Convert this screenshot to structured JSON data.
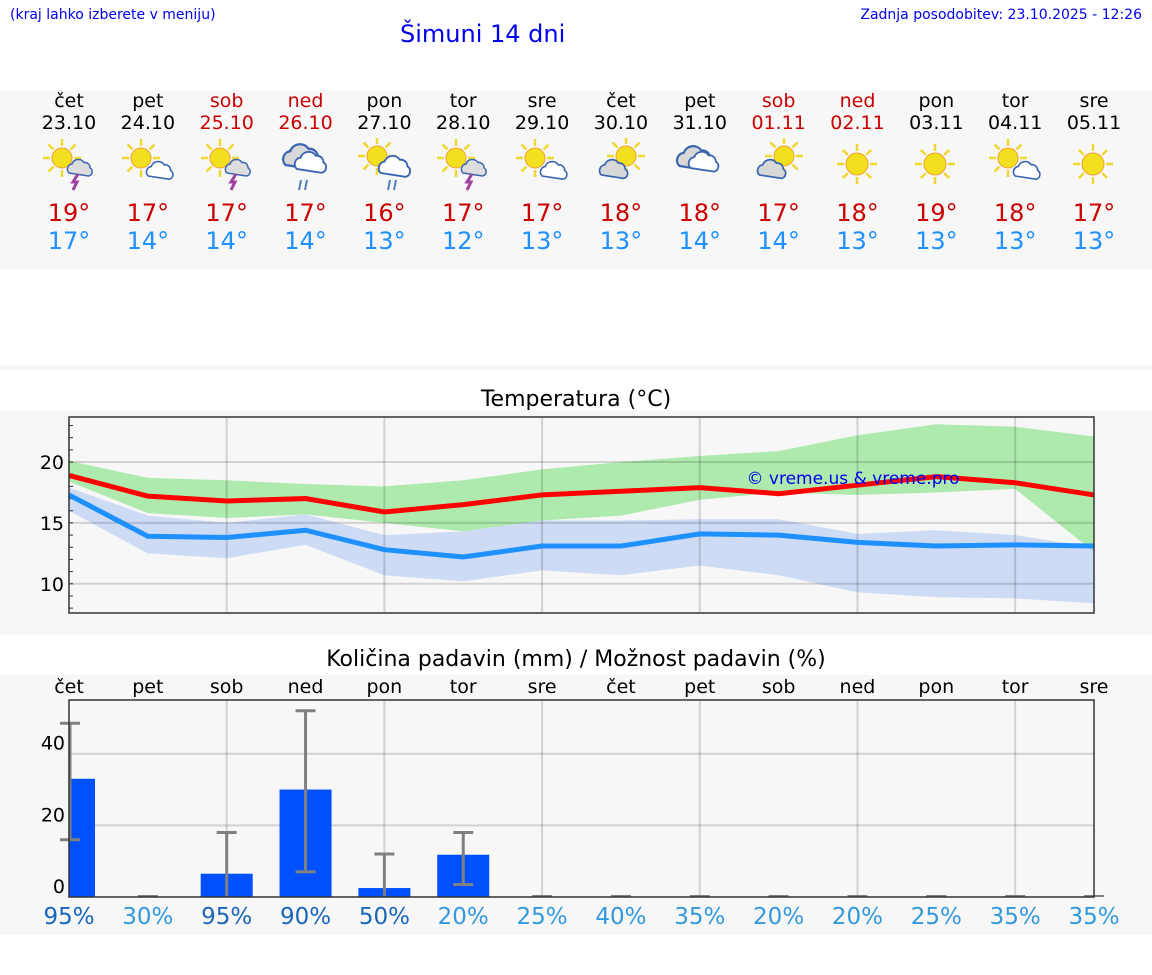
{
  "header": {
    "hint": "(kraj lahko izberete v meniju)",
    "title": "Šimuni 14 dni",
    "updated": "Zadnja posodobitev: 23.10.2025 - 12:26"
  },
  "days": [
    {
      "name": "čet",
      "date": "23.10",
      "weekend": false,
      "icon": "sun-storm",
      "max": "19°",
      "min": "17°"
    },
    {
      "name": "pet",
      "date": "24.10",
      "weekend": false,
      "icon": "sun-cloud",
      "max": "17°",
      "min": "14°"
    },
    {
      "name": "sob",
      "date": "25.10",
      "weekend": true,
      "icon": "sun-storm",
      "max": "17°",
      "min": "14°"
    },
    {
      "name": "ned",
      "date": "26.10",
      "weekend": true,
      "icon": "cloud-rain",
      "max": "17°",
      "min": "14°"
    },
    {
      "name": "pon",
      "date": "27.10",
      "weekend": false,
      "icon": "sun-cloud-rain",
      "max": "16°",
      "min": "13°"
    },
    {
      "name": "tor",
      "date": "28.10",
      "weekend": false,
      "icon": "sun-storm",
      "max": "17°",
      "min": "12°"
    },
    {
      "name": "sre",
      "date": "29.10",
      "weekend": false,
      "icon": "sun-cloud",
      "max": "17°",
      "min": "13°"
    },
    {
      "name": "čet",
      "date": "30.10",
      "weekend": false,
      "icon": "cloud-sun",
      "max": "18°",
      "min": "13°"
    },
    {
      "name": "pet",
      "date": "31.10",
      "weekend": false,
      "icon": "cloudy",
      "max": "18°",
      "min": "14°"
    },
    {
      "name": "sob",
      "date": "01.11",
      "weekend": true,
      "icon": "cloud-sun",
      "max": "17°",
      "min": "14°"
    },
    {
      "name": "ned",
      "date": "02.11",
      "weekend": true,
      "icon": "sun",
      "max": "18°",
      "min": "13°"
    },
    {
      "name": "pon",
      "date": "03.11",
      "weekend": false,
      "icon": "sun",
      "max": "19°",
      "min": "13°"
    },
    {
      "name": "tor",
      "date": "04.11",
      "weekend": false,
      "icon": "sun-cloud",
      "max": "18°",
      "min": "13°"
    },
    {
      "name": "sre",
      "date": "05.11",
      "weekend": false,
      "icon": "sun",
      "max": "17°",
      "min": "13°"
    }
  ],
  "colors": {
    "max": "#ff0000",
    "min": "#1e90ff",
    "maxBand": "#aeeaae",
    "minBand": "#b0c8f4",
    "bar": "#0050ff",
    "err": "#808080",
    "pctHigh": "#1a66bb",
    "pctLow": "#3399dd"
  },
  "chart_data": [
    {
      "type": "line",
      "title": "Temperatura (°C)",
      "watermark": "© vreme.us & vreme.pro",
      "ylim": [
        7.6,
        23.7
      ],
      "yticks": [
        10,
        15,
        20
      ],
      "grid": true,
      "x": [
        "23.10",
        "24.10",
        "25.10",
        "26.10",
        "27.10",
        "28.10",
        "29.10",
        "30.10",
        "31.10",
        "01.11",
        "02.11",
        "03.11",
        "04.11",
        "05.11"
      ],
      "series": [
        {
          "name": "max",
          "values": [
            18.9,
            17.2,
            16.8,
            17.0,
            15.9,
            16.5,
            17.3,
            17.6,
            17.9,
            17.4,
            18.1,
            18.8,
            18.3,
            17.3
          ]
        },
        {
          "name": "min",
          "values": [
            17.3,
            13.9,
            13.8,
            14.4,
            12.8,
            12.2,
            13.1,
            13.1,
            14.1,
            14.0,
            13.4,
            13.1,
            13.2,
            13.1
          ]
        }
      ],
      "bands": [
        {
          "name": "max-range",
          "upper": [
            20.1,
            18.7,
            18.5,
            18.2,
            18.0,
            18.5,
            19.4,
            20.0,
            20.5,
            20.9,
            22.2,
            23.1,
            22.9,
            22.1
          ],
          "lower": [
            18.4,
            15.8,
            15.4,
            15.7,
            15.0,
            14.3,
            15.2,
            15.6,
            16.9,
            17.5,
            17.3,
            17.5,
            17.8,
            12.6
          ]
        },
        {
          "name": "min-range",
          "upper": [
            17.9,
            15.6,
            15.0,
            15.7,
            14.0,
            14.3,
            15.2,
            15.2,
            15.3,
            15.3,
            14.1,
            14.4,
            14.0,
            13.0
          ],
          "lower": [
            16.0,
            12.5,
            12.1,
            13.2,
            10.7,
            10.2,
            11.1,
            10.7,
            11.5,
            10.7,
            9.3,
            8.9,
            8.8,
            8.4
          ]
        }
      ]
    },
    {
      "type": "bar",
      "title": "Količina padavin (mm) / Možnost padavin (%)",
      "ylim": [
        0,
        55
      ],
      "yticks": [
        0,
        20,
        40
      ],
      "grid": true,
      "categories": [
        "čet",
        "pet",
        "sob",
        "ned",
        "pon",
        "tor",
        "sre",
        "čet",
        "pet",
        "sob",
        "ned",
        "pon",
        "tor",
        "sre"
      ],
      "values": [
        33,
        0,
        6.5,
        30,
        2.5,
        11.8,
        0,
        0,
        0,
        0,
        0,
        0,
        0,
        0
      ],
      "err_low": [
        16,
        0,
        0,
        7,
        0,
        3.5,
        0,
        0,
        0,
        0,
        0,
        0,
        0,
        0
      ],
      "err_high": [
        48.5,
        0,
        18,
        52,
        12,
        18,
        0,
        0,
        0,
        0,
        0,
        0,
        0,
        0
      ],
      "probability": [
        "95%",
        "30%",
        "95%",
        "90%",
        "50%",
        "20%",
        "25%",
        "40%",
        "35%",
        "20%",
        "20%",
        "25%",
        "35%",
        "35%"
      ]
    }
  ]
}
